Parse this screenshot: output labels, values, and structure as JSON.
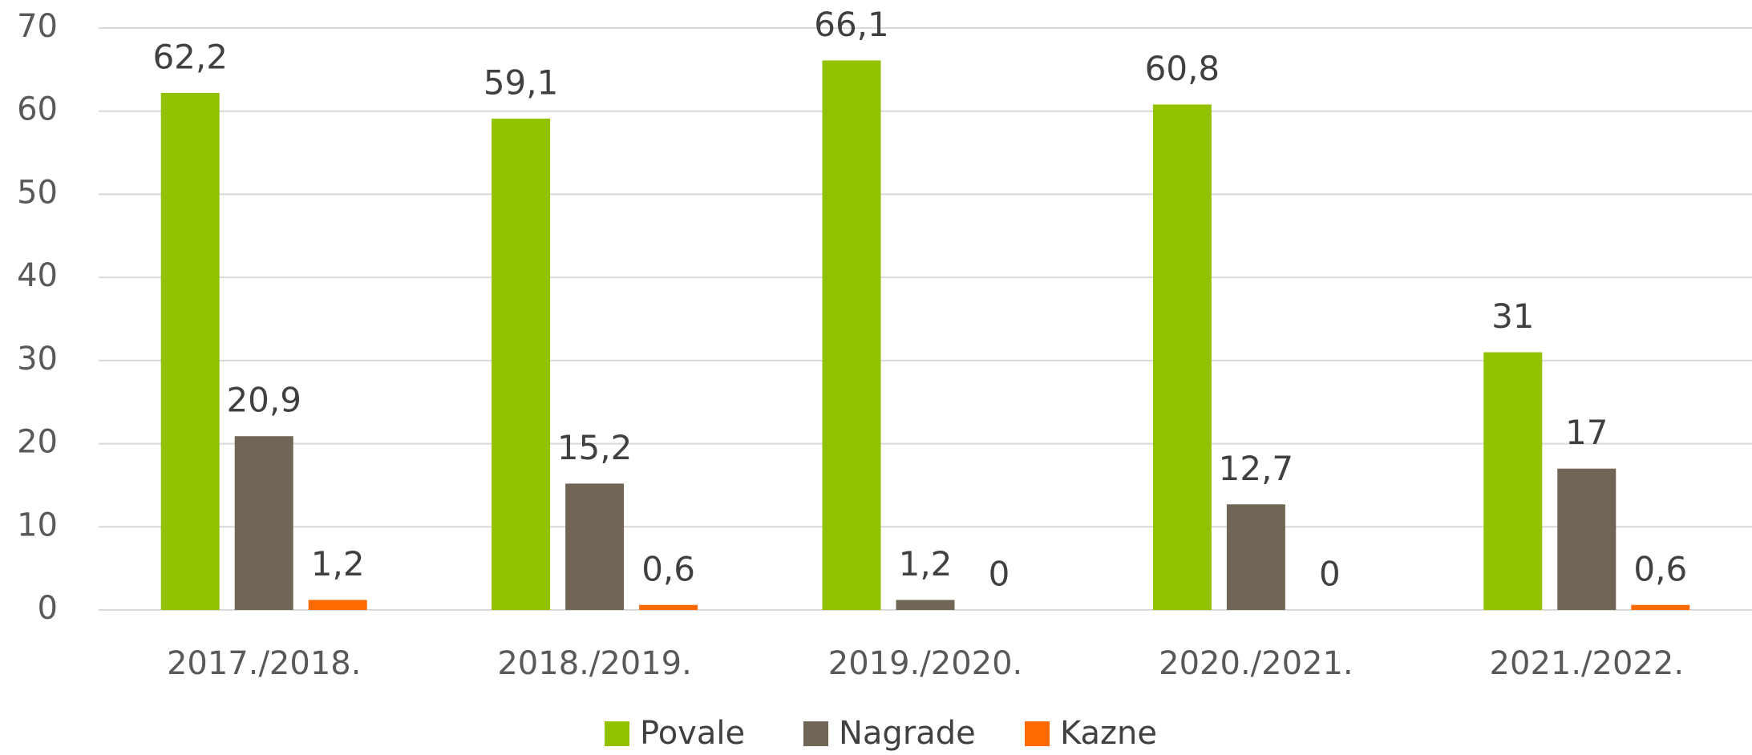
{
  "chart_data": {
    "type": "bar",
    "categories": [
      "2017./2018.",
      "2018./2019.",
      "2019./2020.",
      "2020./2021.",
      "2021./2022."
    ],
    "series": [
      {
        "name": "Povale",
        "color": "#92c100",
        "values": [
          62.2,
          59.1,
          66.1,
          60.8,
          31
        ],
        "value_labels": [
          "62,2",
          "59,1",
          "66,1",
          "60,8",
          "31"
        ]
      },
      {
        "name": "Nagrade",
        "color": "#716656",
        "values": [
          20.9,
          15.2,
          1.2,
          12.7,
          17
        ],
        "value_labels": [
          "20,9",
          "15,2",
          "1,2",
          "12,7",
          "17"
        ]
      },
      {
        "name": "Kazne",
        "color": "#ff6a00",
        "values": [
          1.2,
          0.6,
          0,
          0,
          0.6
        ],
        "value_labels": [
          "1,2",
          "0,6",
          "0",
          "0",
          "0,6"
        ]
      }
    ],
    "ylim": [
      0,
      70
    ],
    "yticks": [
      0,
      10,
      20,
      30,
      40,
      50,
      60,
      70
    ],
    "grid": true,
    "legend": "bottom"
  }
}
